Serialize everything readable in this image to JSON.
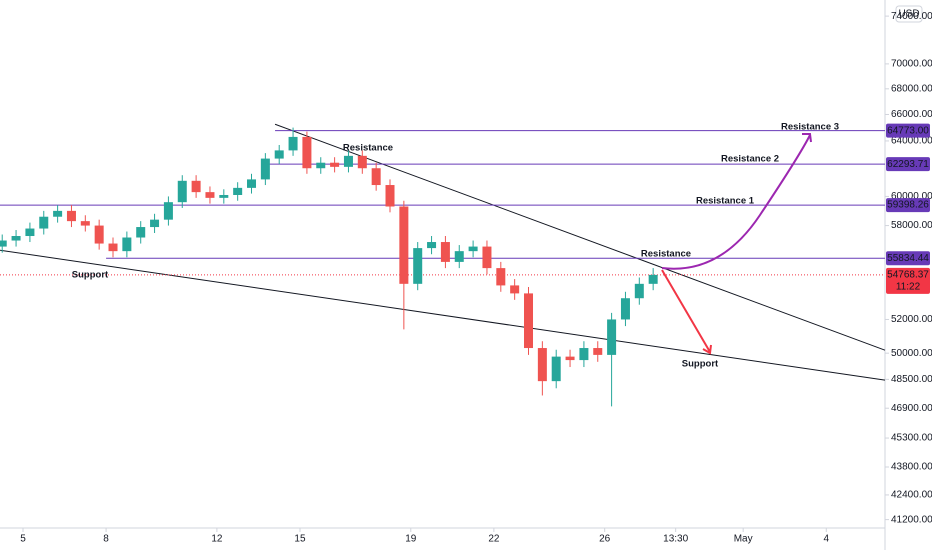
{
  "chart_data": {
    "type": "candlestick",
    "currency": "USD",
    "log_scale": true,
    "grid": false,
    "up_color": "#26a69a",
    "down_color": "#ef5350",
    "xlim": [
      4.17,
      36.12
    ],
    "ylim": [
      40800,
      75400
    ],
    "xticks": [
      5,
      8,
      12,
      15,
      19,
      22,
      26,
      {
        "value": 28.5625,
        "label": "13:30"
      },
      {
        "value": 31,
        "label": "May"
      },
      {
        "value": 34,
        "label": "4"
      }
    ],
    "yticks": [
      {
        "value": 74000,
        "label": "74000.00"
      },
      {
        "value": 70000,
        "label": "70000.00"
      },
      {
        "value": 68000,
        "label": "68000.00"
      },
      {
        "value": 66000,
        "label": "66000.00"
      },
      {
        "value": 64000,
        "label": "64000.00"
      },
      {
        "value": 60000,
        "label": "60000.00"
      },
      {
        "value": 58000,
        "label": "58000.00"
      },
      {
        "value": 52000,
        "label": "52000.00"
      },
      {
        "value": 50000,
        "label": "50000.00"
      },
      {
        "value": 48500,
        "label": "48500.00"
      },
      {
        "value": 46900,
        "label": "46900.00"
      },
      {
        "value": 45300,
        "label": "45300.00"
      },
      {
        "value": 43800,
        "label": "43800.00"
      },
      {
        "value": 42400,
        "label": "42400.00"
      },
      {
        "value": 41200,
        "label": "41200.00"
      }
    ],
    "x": [
      4.25,
      4.75,
      5.25,
      5.75,
      6.25,
      6.75,
      7.25,
      7.75,
      8.25,
      8.75,
      9.25,
      9.75,
      10.25,
      10.75,
      11.25,
      11.75,
      12.25,
      12.75,
      13.25,
      13.75,
      14.25,
      14.75,
      15.25,
      15.75,
      16.25,
      16.75,
      17.25,
      17.75,
      18.25,
      18.75,
      19.25,
      19.75,
      20.25,
      20.75,
      21.25,
      21.75,
      22.25,
      22.75,
      23.25,
      23.75,
      24.25,
      24.75,
      25.25,
      25.75,
      26.25,
      26.75,
      27.25,
      27.75
    ],
    "open": [
      56600,
      57000,
      57300,
      57800,
      58600,
      59000,
      58300,
      58000,
      56800,
      56300,
      57200,
      57900,
      58400,
      59600,
      61100,
      60300,
      59900,
      60100,
      60600,
      61200,
      62700,
      63300,
      64300,
      62000,
      62400,
      62100,
      62900,
      62000,
      60800,
      59300,
      54200,
      56500,
      56900,
      55600,
      56300,
      56600,
      55200,
      54100,
      53600,
      50300,
      48400,
      49800,
      49600,
      50300,
      49900,
      52000,
      53300,
      54200
    ],
    "high": [
      57400,
      57700,
      58200,
      59000,
      59400,
      59400,
      58700,
      58400,
      57200,
      57600,
      58300,
      58800,
      60000,
      61500,
      61500,
      60700,
      60500,
      61000,
      61600,
      63100,
      63700,
      65000,
      64700,
      62800,
      62800,
      63300,
      63300,
      62400,
      61200,
      59700,
      56900,
      57300,
      57300,
      56700,
      57000,
      57000,
      55600,
      54500,
      54000,
      50700,
      50200,
      50200,
      50700,
      50700,
      52400,
      53700,
      54600,
      55200
    ],
    "low": [
      56200,
      56600,
      56900,
      57400,
      58200,
      57900,
      57600,
      56400,
      55900,
      55900,
      56800,
      57500,
      58000,
      59200,
      59900,
      59500,
      59500,
      59700,
      60200,
      60800,
      62300,
      62900,
      61600,
      61600,
      61700,
      61700,
      61600,
      60400,
      58900,
      51400,
      53800,
      56100,
      55200,
      55200,
      55900,
      54800,
      53700,
      53200,
      49900,
      47600,
      48000,
      49200,
      49200,
      49500,
      47000,
      51600,
      52900,
      53800
    ],
    "close": [
      57000,
      57300,
      57800,
      58600,
      59000,
      58300,
      58000,
      56800,
      56300,
      57200,
      57900,
      58400,
      59600,
      61100,
      60300,
      59900,
      60100,
      60600,
      61200,
      62700,
      63300,
      64300,
      62000,
      62400,
      62100,
      62900,
      62000,
      60800,
      59300,
      54200,
      56500,
      56900,
      55600,
      56300,
      56600,
      55200,
      54100,
      53600,
      50300,
      48400,
      49800,
      49600,
      50300,
      49900,
      52000,
      53300,
      54200,
      54768
    ],
    "price_lines": [
      {
        "value": 64773.0,
        "label": "64773.00",
        "start": 14.1
      },
      {
        "value": 62293.71,
        "label": "62293.71",
        "start": 13.6
      },
      {
        "value": 59398.26,
        "label": "59398.26",
        "start": 4.17
      },
      {
        "value": 55834.44,
        "label": "55834.44",
        "start": 8.0
      }
    ],
    "line_color": "#673ab7",
    "current_price": {
      "value": 54768.37,
      "label": "54768.37",
      "countdown": "11:22",
      "color": "#f23645"
    },
    "trendlines": [
      {
        "x": [
          14.1,
          36.12
        ],
        "y": [
          65255,
          50175
        ]
      },
      {
        "x": [
          4.17,
          36.12
        ],
        "y": [
          56363,
          48455
        ]
      }
    ],
    "annotations": [
      "Resistance 3",
      "Resistance 2",
      "Resistance 1",
      "Resistance",
      "Resistance",
      "Support",
      "Support"
    ]
  }
}
